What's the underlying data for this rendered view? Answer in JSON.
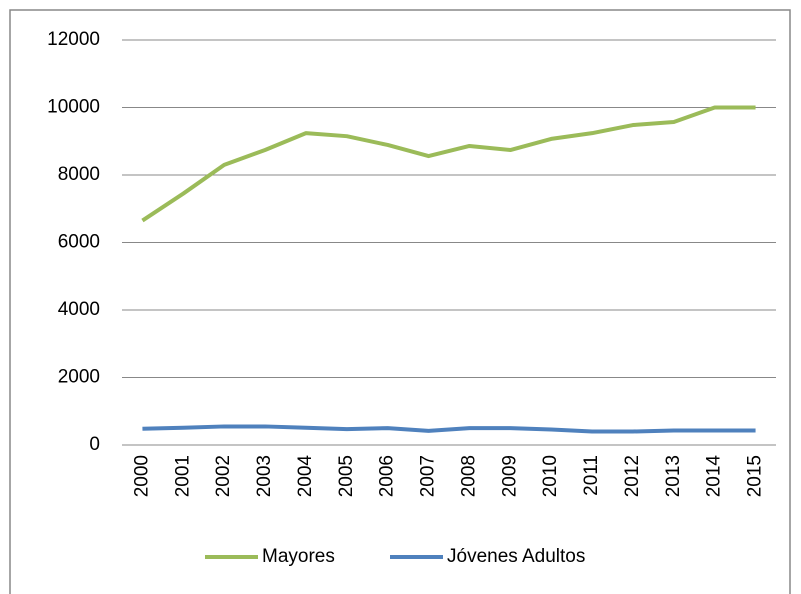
{
  "chart_data": {
    "type": "line",
    "categories": [
      "2000",
      "2001",
      "2002",
      "2003",
      "2004",
      "2005",
      "2006",
      "2007",
      "2008",
      "2009",
      "2010",
      "2011",
      "2012",
      "2013",
      "2014",
      "2015"
    ],
    "series": [
      {
        "name": "Mayores",
        "color": "#9bbb59",
        "values": [
          6650,
          7450,
          8300,
          8740,
          9240,
          9150,
          8890,
          8560,
          8860,
          8740,
          9070,
          9240,
          9480,
          9570,
          10000,
          10000
        ]
      },
      {
        "name": "Jóvenes Adultos",
        "color": "#4f81bd",
        "values": [
          480,
          510,
          550,
          550,
          510,
          470,
          500,
          420,
          500,
          500,
          460,
          400,
          400,
          430,
          430,
          430
        ]
      }
    ],
    "ylim": [
      0,
      12000
    ],
    "yticks": [
      0,
      2000,
      4000,
      6000,
      8000,
      10000,
      12000
    ],
    "grid": true,
    "legend": "bottom"
  }
}
